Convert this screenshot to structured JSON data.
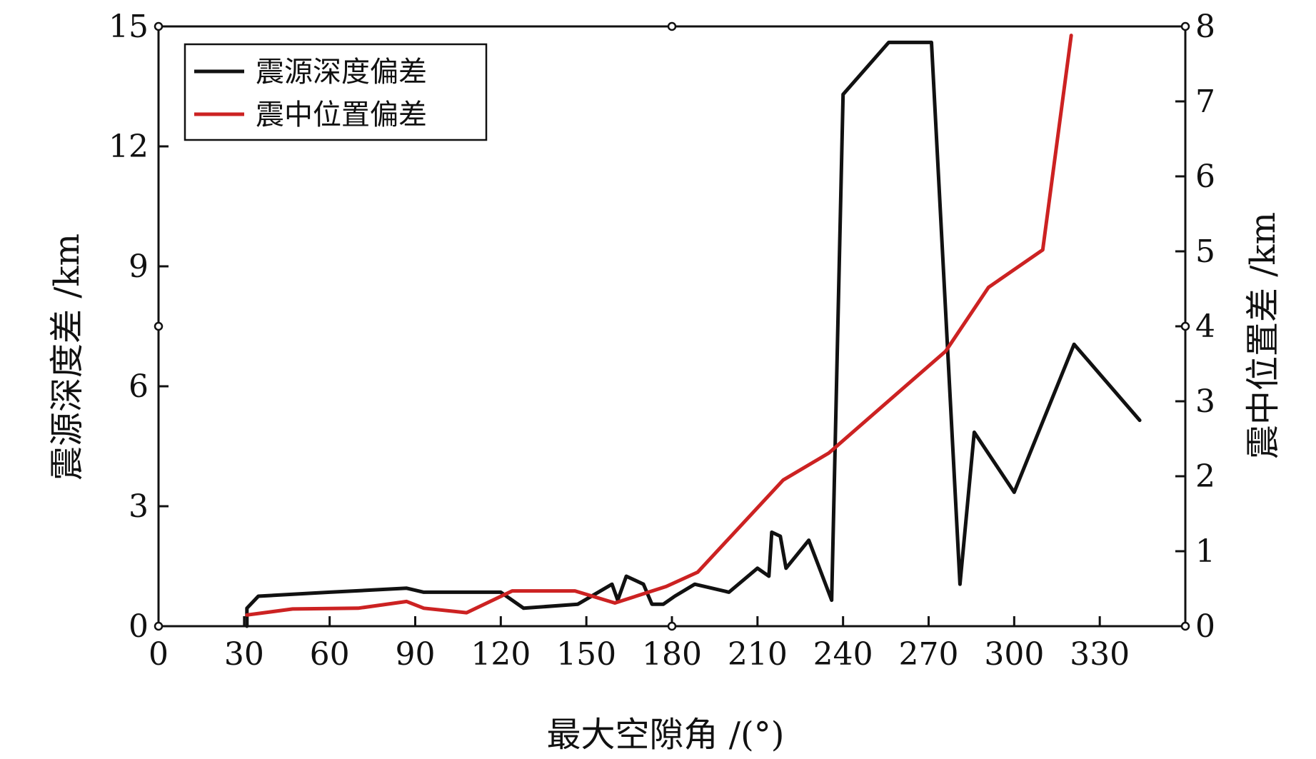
{
  "chart_data": {
    "type": "line",
    "xlabel": "最大空隙角 /(°)",
    "ylabel_left": "震源深度差 /km",
    "ylabel_right": "震中位置差 /km",
    "xlim": [
      0,
      360
    ],
    "ylim_left": [
      0,
      15
    ],
    "ylim_right": [
      0,
      8
    ],
    "x_ticks": [
      "0",
      "30",
      "60",
      "90",
      "120",
      "150",
      "180",
      "210",
      "240",
      "270",
      "300",
      "330"
    ],
    "y_ticks_left": [
      "0",
      "3",
      "6",
      "9",
      "12",
      "15"
    ],
    "y_ticks_right": [
      "0",
      "1",
      "2",
      "3",
      "4",
      "5",
      "6",
      "7",
      "8"
    ],
    "grid": false,
    "legend_position": "top-left",
    "series": [
      {
        "name": "震源深度偏差",
        "axis": "left",
        "color": "#111111",
        "points": [
          [
            31,
            0
          ],
          [
            31,
            0.45
          ],
          [
            35,
            0.75
          ],
          [
            60,
            0.85
          ],
          [
            87,
            0.95
          ],
          [
            93,
            0.85
          ],
          [
            120,
            0.85
          ],
          [
            128,
            0.45
          ],
          [
            147,
            0.55
          ],
          [
            159,
            1.05
          ],
          [
            161,
            0.65
          ],
          [
            164,
            1.25
          ],
          [
            170,
            1.05
          ],
          [
            173,
            0.55
          ],
          [
            177,
            0.55
          ],
          [
            181,
            0.75
          ],
          [
            188,
            1.05
          ],
          [
            200,
            0.85
          ],
          [
            210,
            1.45
          ],
          [
            214,
            1.25
          ],
          [
            215,
            2.35
          ],
          [
            218,
            2.25
          ],
          [
            220,
            1.45
          ],
          [
            228,
            2.15
          ],
          [
            236,
            0.65
          ],
          [
            240,
            13.3
          ],
          [
            256,
            14.6
          ],
          [
            271,
            14.6
          ],
          [
            281,
            1.05
          ],
          [
            286,
            4.85
          ],
          [
            300,
            3.35
          ],
          [
            321,
            7.05
          ],
          [
            344,
            5.15
          ]
        ]
      },
      {
        "name": "震中位置偏差",
        "axis": "right",
        "color": "#cc2222",
        "points": [
          [
            31,
            0.15
          ],
          [
            47,
            0.23
          ],
          [
            70,
            0.24
          ],
          [
            87,
            0.33
          ],
          [
            93,
            0.24
          ],
          [
            108,
            0.18
          ],
          [
            124,
            0.47
          ],
          [
            146,
            0.47
          ],
          [
            160,
            0.31
          ],
          [
            178,
            0.53
          ],
          [
            189,
            0.72
          ],
          [
            219,
            1.95
          ],
          [
            235,
            2.31
          ],
          [
            276,
            3.67
          ],
          [
            291,
            4.52
          ],
          [
            310,
            5.02
          ],
          [
            320,
            7.88
          ]
        ]
      }
    ]
  }
}
